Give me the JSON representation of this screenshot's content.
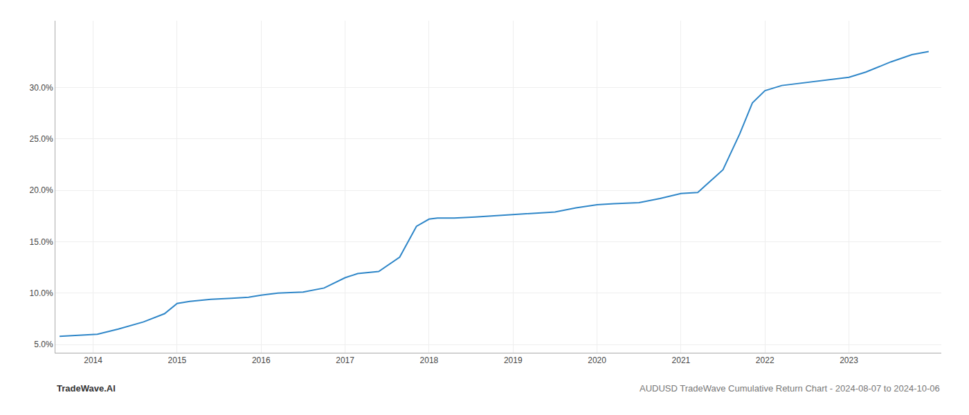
{
  "chart_data": {
    "type": "line",
    "x": [
      2013.6,
      2014.05,
      2014.3,
      2014.6,
      2014.85,
      2015.0,
      2015.15,
      2015.4,
      2015.65,
      2015.85,
      2016.0,
      2016.2,
      2016.5,
      2016.75,
      2017.0,
      2017.15,
      2017.4,
      2017.65,
      2017.85,
      2018.0,
      2018.1,
      2018.3,
      2018.55,
      2018.75,
      2019.0,
      2019.2,
      2019.5,
      2019.75,
      2020.0,
      2020.2,
      2020.5,
      2020.75,
      2021.0,
      2021.1,
      2021.2,
      2021.5,
      2021.7,
      2021.85,
      2022.0,
      2022.2,
      2022.5,
      2022.75,
      2023.0,
      2023.2,
      2023.5,
      2023.75,
      2023.95
    ],
    "values": [
      5.8,
      6.0,
      6.5,
      7.2,
      8.0,
      9.0,
      9.2,
      9.4,
      9.5,
      9.6,
      9.8,
      10.0,
      10.1,
      10.5,
      11.5,
      11.9,
      12.1,
      13.5,
      16.5,
      17.2,
      17.3,
      17.3,
      17.4,
      17.5,
      17.6,
      17.7,
      17.9,
      18.3,
      18.6,
      18.7,
      18.8,
      19.2,
      19.7,
      19.75,
      19.8,
      22.0,
      25.5,
      28.5,
      29.7,
      30.2,
      30.5,
      30.7,
      31.0,
      31.5,
      32.5,
      33.2,
      33.5
    ],
    "color": "#2e86c8",
    "xlim": [
      2013.55,
      2024.1
    ],
    "xticks": [
      2014,
      2015,
      2016,
      2017,
      2018,
      2019,
      2020,
      2021,
      2022,
      2023
    ],
    "ylim": [
      4.2,
      36.5
    ],
    "yticks": [
      {
        "value": 5.0,
        "label": "5.0%"
      },
      {
        "value": 10.0,
        "label": "10.0%"
      },
      {
        "value": 15.0,
        "label": "15.0%"
      },
      {
        "value": 20.0,
        "label": "20.0%"
      },
      {
        "value": 25.0,
        "label": "25.0%"
      },
      {
        "value": 30.0,
        "label": "30.0%"
      }
    ],
    "grid": true,
    "annotations": [
      "TradeWave.AI",
      "AUDUSD TradeWave Cumulative Return Chart - 2024-08-07 to 2024-10-06"
    ]
  }
}
